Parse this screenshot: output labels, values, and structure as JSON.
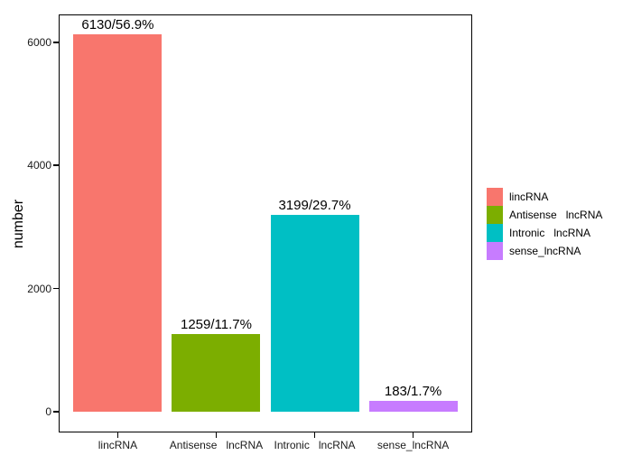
{
  "chart_data": {
    "type": "bar",
    "title": "",
    "xlabel": "",
    "ylabel": "number",
    "categories": [
      "lincRNA",
      "Antisense   lncRNA",
      "Intronic   lncRNA",
      "sense_lncRNA"
    ],
    "values": [
      6130,
      1259,
      3199,
      183
    ],
    "percentages": [
      56.9,
      11.7,
      29.7,
      1.7
    ],
    "bar_labels": [
      "6130/56.9%",
      "1259/11.7%",
      "3199/29.7%",
      "183/1.7%"
    ],
    "bar_colors": [
      "#F8766D",
      "#7CAE00",
      "#00BFC4",
      "#C77CFF"
    ],
    "ylim": [
      0,
      6440
    ],
    "yticks": [
      0,
      2000,
      4000,
      6000
    ],
    "ytick_labels": [
      "0",
      "2000",
      "4000",
      "6000"
    ],
    "grid": false,
    "panel_border_color": "#000000",
    "background_color": "#ffffff",
    "legend": {
      "position": "right",
      "entries": [
        {
          "label": "lincRNA",
          "color": "#F8766D"
        },
        {
          "label": "Antisense   lncRNA",
          "color": "#7CAE00"
        },
        {
          "label": "Intronic   lncRNA",
          "color": "#00BFC4"
        },
        {
          "label": "sense_lncRNA",
          "color": "#C77CFF"
        }
      ]
    }
  }
}
